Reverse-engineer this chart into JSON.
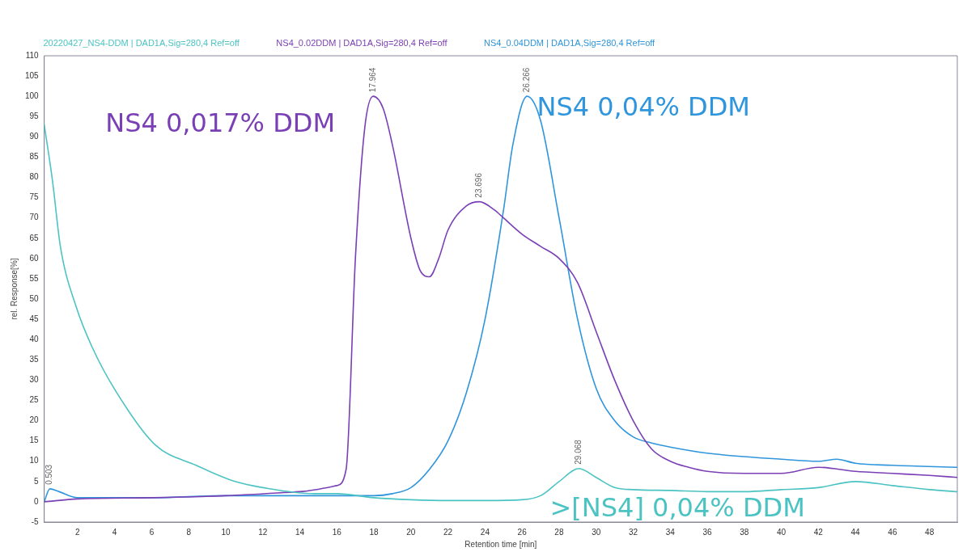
{
  "chart_data": {
    "type": "line",
    "xlabel": "Retention time [min]",
    "ylabel": "rel. Response[%]",
    "xlim": [
      0.2,
      49.5
    ],
    "xticks": [
      2,
      4,
      6,
      8,
      10,
      12,
      14,
      16,
      18,
      20,
      22,
      24,
      26,
      28,
      30,
      32,
      34,
      36,
      38,
      40,
      42,
      44,
      46,
      48
    ],
    "ylim": [
      -5,
      110
    ],
    "yticks": [
      -5,
      0,
      5,
      10,
      15,
      20,
      25,
      30,
      35,
      40,
      45,
      50,
      55,
      60,
      65,
      70,
      75,
      80,
      85,
      90,
      95,
      100,
      105,
      110
    ],
    "grid": false,
    "legend": "top",
    "marker": "none",
    "line_style": "solid",
    "series": [
      {
        "name": "20220427_NS4-DDM | DAD1A,Sig=280,4 Ref=off",
        "color": "#4cc3c3",
        "x": [
          0.2,
          0.65,
          1.07,
          1.93,
          2.8,
          4.1,
          6.2,
          8.4,
          10.5,
          12,
          14.8,
          16,
          18,
          20,
          22,
          24,
          26,
          27,
          28,
          29.07,
          30,
          31,
          32,
          34,
          36,
          38,
          40,
          42,
          44,
          46,
          48,
          49.5
        ],
        "values": [
          93,
          79,
          63,
          48,
          38,
          27,
          14,
          9,
          5,
          3.5,
          2,
          2,
          1,
          0.5,
          0.3,
          0.3,
          0.5,
          1.5,
          5,
          8.2,
          6,
          3.5,
          3,
          2.8,
          2.5,
          2.5,
          3,
          3.5,
          5,
          4,
          3,
          2.5
        ]
      },
      {
        "name": "NS4_0.02DDM | DAD1A,Sig=280,4 Ref=off",
        "color": "#7b3fb5",
        "x": [
          0.2,
          2,
          6,
          10,
          14,
          16,
          16.5,
          17,
          17.5,
          17.96,
          18.5,
          19,
          20,
          20.5,
          21,
          21.5,
          22,
          23,
          23.7,
          24.5,
          25,
          26,
          27,
          28,
          29,
          30,
          31,
          32,
          33,
          34,
          35,
          36,
          38,
          40,
          42,
          44,
          46,
          48,
          49.5
        ],
        "values": [
          0,
          0.7,
          1,
          1.5,
          2.5,
          4,
          8,
          60,
          92,
          100,
          97,
          88,
          65,
          57,
          55.5,
          60,
          67,
          73,
          74,
          72,
          70,
          66,
          63,
          60,
          54,
          42,
          30,
          20,
          13,
          10,
          8.5,
          7.5,
          7,
          7,
          8.5,
          7.5,
          7,
          6.5,
          6
        ]
      },
      {
        "name": "NS4_0.04DDM | DAD1A,Sig=280,4 Ref=off",
        "color": "#2f95dc",
        "x": [
          0.2,
          0.5,
          1,
          2,
          6,
          10,
          14,
          18,
          19,
          20,
          21,
          22,
          23,
          24,
          25,
          25.5,
          26.27,
          27,
          28,
          29,
          30,
          31,
          32,
          33,
          34,
          36,
          40,
          42,
          43,
          44,
          46,
          49.5
        ],
        "values": [
          0,
          3.2,
          2.5,
          1,
          1,
          1.5,
          1.5,
          1.5,
          2,
          3.5,
          8,
          15,
          27,
          45,
          72,
          88,
          100,
          94,
          70,
          45,
          28,
          20,
          16,
          14.5,
          13.5,
          12,
          10.5,
          10,
          10.5,
          9.5,
          9,
          8.5
        ]
      }
    ],
    "annotations": [
      {
        "text": "0.503",
        "x": 0.5,
        "y": 3.2
      },
      {
        "text": "17.964",
        "x": 17.96,
        "y": 100
      },
      {
        "text": "23.696",
        "x": 23.7,
        "y": 74
      },
      {
        "text": "26.266",
        "x": 26.27,
        "y": 100
      },
      {
        "text": "29.068",
        "x": 29.07,
        "y": 8.2
      },
      ">[NS4] 0,04% DDM",
      "NS4 0,017% DDM",
      "NS4 0,04% DDM"
    ]
  }
}
